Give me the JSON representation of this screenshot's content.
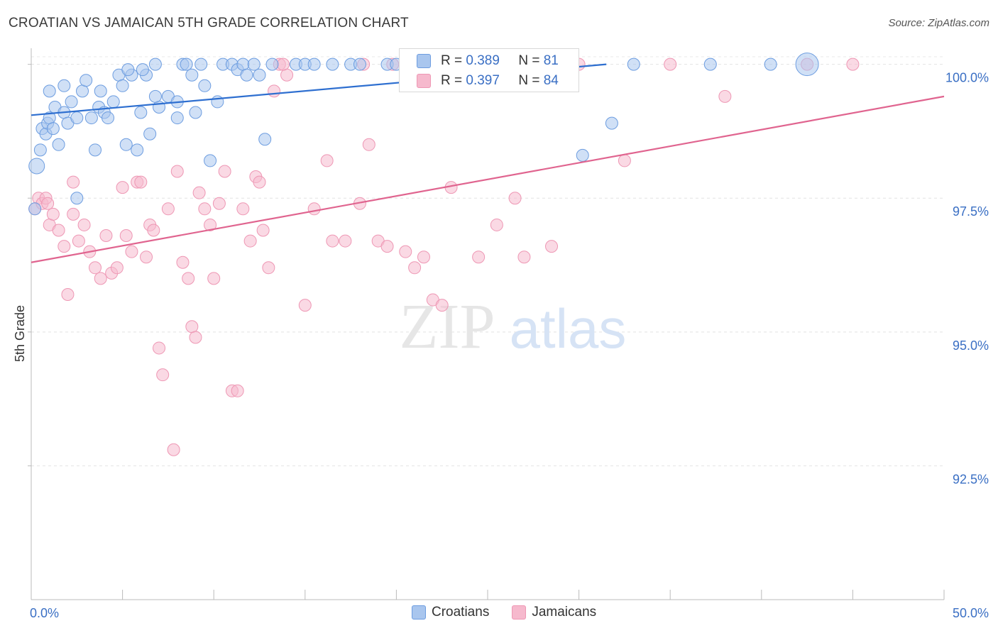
{
  "header": {
    "title": "CROATIAN VS JAMAICAN 5TH GRADE CORRELATION CHART",
    "source": "Source: ZipAtlas.com"
  },
  "watermark": {
    "part1": "ZIP",
    "part2": "atlas"
  },
  "legend_top": {
    "rows": [
      {
        "r_label": "R =",
        "r_value": "0.389",
        "n_label": "N =",
        "n_value": "81",
        "color": "#a9c6ee"
      },
      {
        "r_label": "R =",
        "r_value": "0.397",
        "n_label": "N =",
        "n_value": "84",
        "color": "#f6b9cd"
      }
    ]
  },
  "legend_bottom": {
    "items": [
      {
        "label": "Croatians",
        "color": "#a9c6ee"
      },
      {
        "label": "Jamaicans",
        "color": "#f6b9cd"
      }
    ]
  },
  "chart_data": {
    "type": "scatter",
    "title": "CROATIAN VS JAMAICAN 5TH GRADE CORRELATION CHART",
    "xlabel": "",
    "ylabel": "5th Grade",
    "xlim": [
      0,
      50
    ],
    "ylim": [
      90.0,
      100.3
    ],
    "x_tick_labels": [
      {
        "value": 0,
        "label": "0.0%"
      },
      {
        "value": 50,
        "label": "50.0%"
      }
    ],
    "y_tick_labels": [
      {
        "value": 100.0,
        "label": "100.0%"
      },
      {
        "value": 97.5,
        "label": "97.5%"
      },
      {
        "value": 95.0,
        "label": "95.0%"
      },
      {
        "value": 92.5,
        "label": "92.5%"
      }
    ],
    "grid": true,
    "legend_position": "top-center",
    "series": [
      {
        "name": "Croatians",
        "color": "#6d9de0",
        "fill": "#a9c6ee",
        "trend": {
          "x0": 0,
          "y0": 99.05,
          "x1": 31.5,
          "y1": 100.0,
          "color": "#2e6fd0"
        },
        "points": [
          [
            0.3,
            98.1
          ],
          [
            0.5,
            98.4
          ],
          [
            0.6,
            98.8
          ],
          [
            0.8,
            98.7
          ],
          [
            0.9,
            98.9
          ],
          [
            1.0,
            99.0
          ],
          [
            1.2,
            98.8
          ],
          [
            1.3,
            99.2
          ],
          [
            1.5,
            98.5
          ],
          [
            1.8,
            99.1
          ],
          [
            2.0,
            98.9
          ],
          [
            2.2,
            99.3
          ],
          [
            2.5,
            99.0
          ],
          [
            2.8,
            99.5
          ],
          [
            3.0,
            99.7
          ],
          [
            3.3,
            99.0
          ],
          [
            3.5,
            98.4
          ],
          [
            3.7,
            99.2
          ],
          [
            4.0,
            99.1
          ],
          [
            4.2,
            99.0
          ],
          [
            4.5,
            99.3
          ],
          [
            4.8,
            99.8
          ],
          [
            5.0,
            99.6
          ],
          [
            5.2,
            98.5
          ],
          [
            5.5,
            99.8
          ],
          [
            5.8,
            98.4
          ],
          [
            6.0,
            99.1
          ],
          [
            6.3,
            99.8
          ],
          [
            6.5,
            98.7
          ],
          [
            6.8,
            100.0
          ],
          [
            7.0,
            99.2
          ],
          [
            7.5,
            99.4
          ],
          [
            8.0,
            99.3
          ],
          [
            8.3,
            100.0
          ],
          [
            8.5,
            100.0
          ],
          [
            8.8,
            99.8
          ],
          [
            9.0,
            99.1
          ],
          [
            9.3,
            100.0
          ],
          [
            9.8,
            98.2
          ],
          [
            10.5,
            100.0
          ],
          [
            11.0,
            100.0
          ],
          [
            11.3,
            99.9
          ],
          [
            11.6,
            100.0
          ],
          [
            12.2,
            100.0
          ],
          [
            12.5,
            99.8
          ],
          [
            12.8,
            98.6
          ],
          [
            13.2,
            100.0
          ],
          [
            14.5,
            100.0
          ],
          [
            15.0,
            100.0
          ],
          [
            15.5,
            100.0
          ],
          [
            16.5,
            100.0
          ],
          [
            17.5,
            100.0
          ],
          [
            18.0,
            100.0
          ],
          [
            19.5,
            100.0
          ],
          [
            20.0,
            100.0
          ],
          [
            21.0,
            100.0
          ],
          [
            22.0,
            100.0
          ],
          [
            24.0,
            100.0
          ],
          [
            25.0,
            100.0
          ],
          [
            26.0,
            100.0
          ],
          [
            27.5,
            100.0
          ],
          [
            28.0,
            100.0
          ],
          [
            29.5,
            100.0
          ],
          [
            30.2,
            98.3
          ],
          [
            31.8,
            98.9
          ],
          [
            33.0,
            100.0
          ],
          [
            37.2,
            100.0
          ],
          [
            40.5,
            100.0
          ],
          [
            42.5,
            100.0
          ],
          [
            0.2,
            97.3
          ],
          [
            2.5,
            97.5
          ],
          [
            1.0,
            99.5
          ],
          [
            1.8,
            99.6
          ],
          [
            6.8,
            99.4
          ],
          [
            8.0,
            99.0
          ],
          [
            9.5,
            99.6
          ],
          [
            10.2,
            99.3
          ],
          [
            3.8,
            99.5
          ],
          [
            5.3,
            99.9
          ],
          [
            11.8,
            99.8
          ],
          [
            6.1,
            99.9
          ]
        ]
      },
      {
        "name": "Jamaicans",
        "color": "#ee97b4",
        "fill": "#f6b9cd",
        "trend": {
          "x0": 0,
          "y0": 96.3,
          "x1": 50,
          "y1": 99.4,
          "color": "#e0648f"
        },
        "points": [
          [
            0.2,
            97.3
          ],
          [
            0.4,
            97.5
          ],
          [
            0.6,
            97.4
          ],
          [
            0.8,
            97.5
          ],
          [
            1.0,
            97.0
          ],
          [
            1.2,
            97.2
          ],
          [
            1.5,
            96.9
          ],
          [
            1.8,
            96.6
          ],
          [
            2.0,
            95.7
          ],
          [
            2.3,
            97.2
          ],
          [
            2.6,
            96.7
          ],
          [
            2.9,
            97.0
          ],
          [
            3.2,
            96.5
          ],
          [
            3.5,
            96.2
          ],
          [
            3.8,
            96.0
          ],
          [
            4.1,
            96.8
          ],
          [
            4.4,
            96.1
          ],
          [
            4.7,
            96.2
          ],
          [
            5.0,
            97.7
          ],
          [
            5.2,
            96.8
          ],
          [
            5.5,
            96.5
          ],
          [
            5.8,
            97.8
          ],
          [
            6.0,
            97.8
          ],
          [
            6.3,
            96.4
          ],
          [
            6.5,
            97.0
          ],
          [
            6.7,
            96.9
          ],
          [
            7.0,
            94.7
          ],
          [
            7.2,
            94.2
          ],
          [
            7.5,
            97.3
          ],
          [
            7.8,
            92.8
          ],
          [
            8.0,
            98.0
          ],
          [
            8.3,
            96.3
          ],
          [
            8.6,
            96.0
          ],
          [
            8.8,
            95.1
          ],
          [
            9.0,
            94.9
          ],
          [
            9.2,
            97.6
          ],
          [
            9.5,
            97.3
          ],
          [
            9.8,
            97.0
          ],
          [
            10.0,
            96.0
          ],
          [
            10.3,
            97.4
          ],
          [
            10.6,
            98.0
          ],
          [
            11.0,
            93.9
          ],
          [
            11.3,
            93.9
          ],
          [
            11.6,
            97.3
          ],
          [
            12.0,
            96.7
          ],
          [
            12.3,
            97.9
          ],
          [
            12.5,
            97.8
          ],
          [
            12.7,
            96.9
          ],
          [
            13.0,
            96.2
          ],
          [
            13.3,
            99.5
          ],
          [
            13.6,
            100.0
          ],
          [
            14.0,
            99.8
          ],
          [
            15.0,
            95.5
          ],
          [
            15.5,
            97.3
          ],
          [
            16.2,
            98.2
          ],
          [
            16.5,
            96.7
          ],
          [
            17.2,
            96.7
          ],
          [
            18.0,
            97.4
          ],
          [
            18.5,
            98.5
          ],
          [
            19.0,
            96.7
          ],
          [
            19.5,
            96.6
          ],
          [
            20.5,
            96.5
          ],
          [
            21.0,
            96.2
          ],
          [
            21.5,
            96.4
          ],
          [
            22.0,
            95.6
          ],
          [
            22.5,
            95.5
          ],
          [
            23.0,
            97.7
          ],
          [
            24.0,
            100.0
          ],
          [
            24.5,
            96.4
          ],
          [
            25.5,
            97.0
          ],
          [
            26.5,
            97.5
          ],
          [
            27.0,
            96.4
          ],
          [
            28.5,
            96.6
          ],
          [
            30.0,
            100.0
          ],
          [
            32.5,
            98.2
          ],
          [
            35.0,
            100.0
          ],
          [
            38.0,
            99.4
          ],
          [
            42.5,
            100.0
          ],
          [
            45.0,
            100.0
          ],
          [
            0.9,
            97.4
          ],
          [
            2.3,
            97.8
          ],
          [
            13.8,
            100.0
          ],
          [
            18.2,
            100.0
          ],
          [
            19.8,
            100.0
          ]
        ]
      }
    ]
  }
}
